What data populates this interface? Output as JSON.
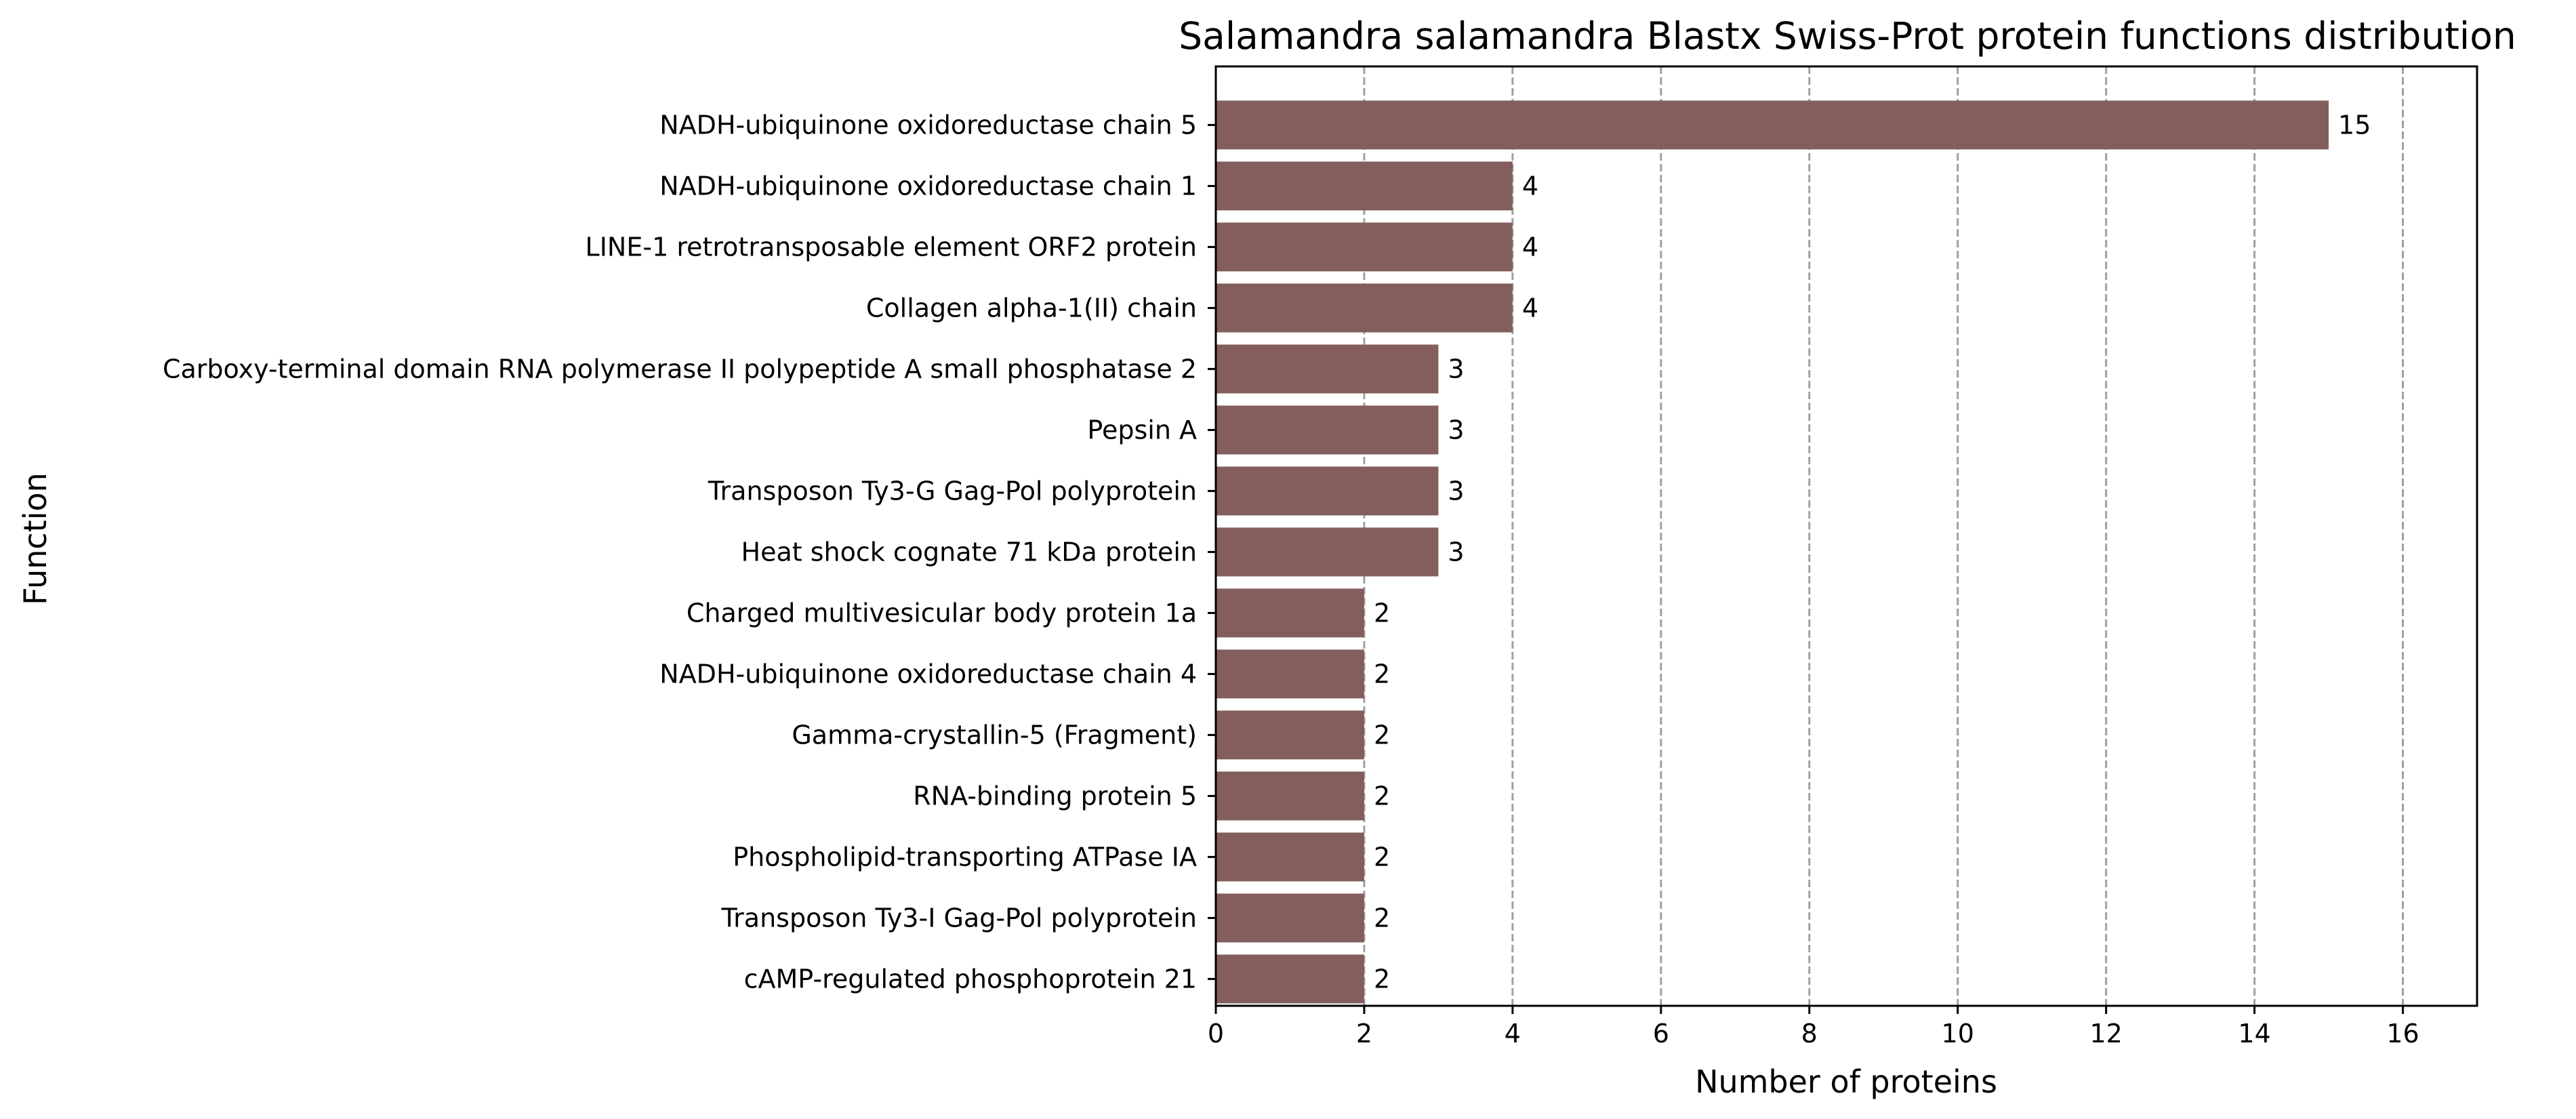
{
  "chart_data": {
    "type": "bar",
    "orientation": "horizontal",
    "title": "Salamandra salamandra Blastx Swiss-Prot protein functions distribution",
    "xlabel": "Number of proteins",
    "ylabel": "Function",
    "xlim": [
      0,
      17
    ],
    "xticks": [
      0,
      2,
      4,
      6,
      8,
      10,
      12,
      14,
      16
    ],
    "grid": "x-dashed",
    "bar_color": "#845e5c",
    "categories": [
      "NADH-ubiquinone oxidoreductase chain 5",
      "NADH-ubiquinone oxidoreductase chain 1",
      "LINE-1 retrotransposable element ORF2 protein",
      "Collagen alpha-1(II) chain",
      "Carboxy-terminal domain RNA polymerase II polypeptide A small phosphatase 2",
      "Pepsin A",
      "Transposon Ty3-G Gag-Pol polyprotein",
      "Heat shock cognate 71 kDa protein",
      "Charged multivesicular body protein 1a",
      "NADH-ubiquinone oxidoreductase chain 4",
      "Gamma-crystallin-5 (Fragment)",
      "RNA-binding protein 5",
      "Phospholipid-transporting ATPase IA",
      "Transposon Ty3-I Gag-Pol polyprotein",
      "cAMP-regulated phosphoprotein 21"
    ],
    "values": [
      15,
      4,
      4,
      4,
      3,
      3,
      3,
      3,
      2,
      2,
      2,
      2,
      2,
      2,
      2
    ]
  }
}
